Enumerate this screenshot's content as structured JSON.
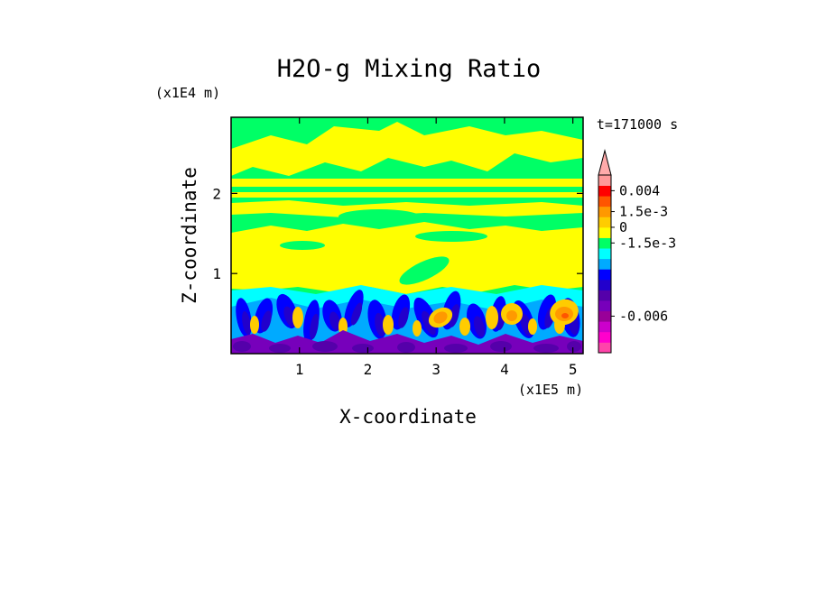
{
  "chart_data": {
    "type": "heatmap",
    "title": "H2O-g Mixing Ratio",
    "xlabel": "X-coordinate",
    "ylabel": "Z-coordinate",
    "x_unit": "(x1E5 m)",
    "y_unit": "(x1E4 m)",
    "time_label": "t=171000 s",
    "xlim": [
      0,
      5.15
    ],
    "ylim": [
      0,
      2.95
    ],
    "x_ticks": [
      {
        "value": 1,
        "label": "1"
      },
      {
        "value": 2,
        "label": "2"
      },
      {
        "value": 3,
        "label": "3"
      },
      {
        "value": 4,
        "label": "4"
      },
      {
        "value": 5,
        "label": "5"
      }
    ],
    "y_ticks": [
      {
        "value": 1,
        "label": "1"
      },
      {
        "value": 2,
        "label": "2"
      }
    ],
    "colorbar": {
      "levels": [
        {
          "color": "#ff44aa"
        },
        {
          "color": "#ff00cc"
        },
        {
          "color": "#cc00cc"
        },
        {
          "color": "#990099"
        },
        {
          "color": "#7700bb"
        },
        {
          "color": "#5500aa"
        },
        {
          "color": "#2200cc"
        },
        {
          "color": "#0000ff"
        },
        {
          "color": "#00aaff"
        },
        {
          "color": "#00ffff"
        },
        {
          "color": "#00ff66"
        },
        {
          "color": "#ffff00"
        },
        {
          "color": "#ffcc00"
        },
        {
          "color": "#ff9900"
        },
        {
          "color": "#ff5500"
        },
        {
          "color": "#ff0000"
        },
        {
          "color": "#ff9999"
        }
      ],
      "arrow_color": "#ffaaaa",
      "labels": [
        {
          "text": "0.004",
          "level": 15.5
        },
        {
          "text": "1.5e-3",
          "level": 13.5
        },
        {
          "text": "0",
          "level": 12.0
        },
        {
          "text": "-1.5e-3",
          "level": 10.5
        },
        {
          "text": "-0.006",
          "level": 3.5
        }
      ]
    },
    "field_colors": {
      "green": "#00ff66",
      "yellow": "#ffff00",
      "cyan": "#00ffff",
      "lightblue": "#00aaff",
      "blue": "#0000ff",
      "indigo": "#2200cc",
      "purple": "#7700bb",
      "darkpurple": "#5500aa",
      "orange": "#ff9900",
      "lightorange": "#ffcc00",
      "red": "#ff5500"
    }
  }
}
